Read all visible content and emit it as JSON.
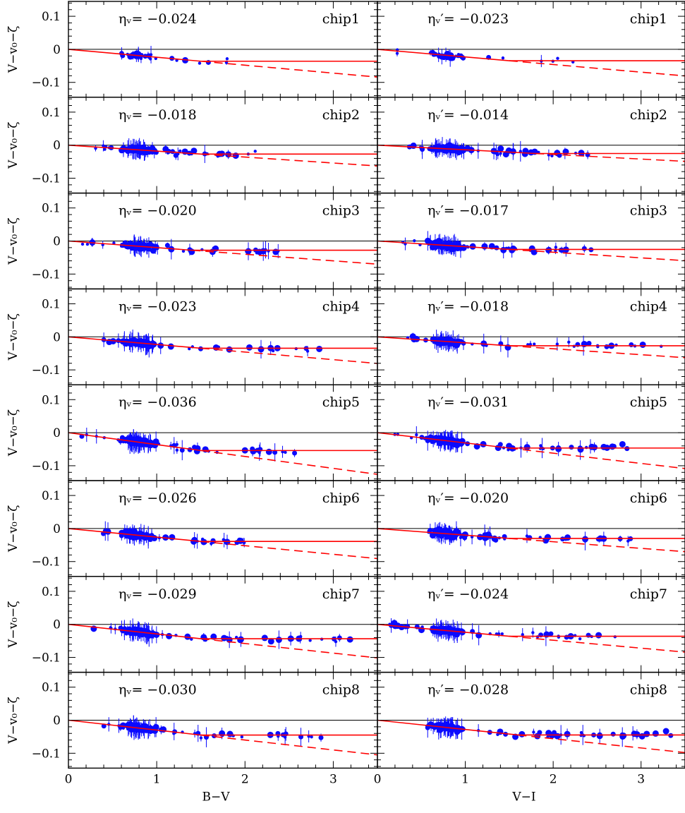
{
  "chart_data": {
    "type": "scatter",
    "layout": "8 rows x 2 columns",
    "columns": [
      {
        "xlabel": "B−V",
        "eta_symbol": "ηᵥ",
        "xlim": [
          0,
          3.5
        ],
        "xticks": [
          "0",
          "1",
          "2",
          "3"
        ]
      },
      {
        "xlabel": "V−I",
        "eta_symbol": "ηᵥ′",
        "xlim": [
          0,
          3.5
        ],
        "xticks": [
          "0",
          "1",
          "2",
          "3"
        ]
      }
    ],
    "ylabel": "V−v₀−ζ",
    "ylim": [
      -0.145,
      0.145
    ],
    "yticks": [
      "0.1",
      "0",
      "−0.1"
    ],
    "reference_line_y": 0,
    "panels": [
      {
        "chip": "chip1",
        "column": 0,
        "eta": -0.024,
        "eta_text": "−0.024",
        "break_x": 1.5,
        "x_range": [
          0.15,
          2.2
        ],
        "n": 40
      },
      {
        "chip": "chip1",
        "column": 1,
        "eta": -0.023,
        "eta_text": "−0.023",
        "break_x": 1.5,
        "x_range": [
          0.2,
          2.4
        ],
        "n": 45
      },
      {
        "chip": "chip2",
        "column": 0,
        "eta": -0.018,
        "eta_text": "−0.018",
        "break_x": 1.5,
        "x_range": [
          0.3,
          2.2
        ],
        "n": 150
      },
      {
        "chip": "chip2",
        "column": 1,
        "eta": -0.014,
        "eta_text": "−0.014",
        "break_x": 1.8,
        "x_range": [
          0.3,
          2.4
        ],
        "n": 170
      },
      {
        "chip": "chip3",
        "column": 0,
        "eta": -0.02,
        "eta_text": "−0.020",
        "break_x": 1.4,
        "x_range": [
          0.15,
          2.4
        ],
        "n": 150
      },
      {
        "chip": "chip3",
        "column": 1,
        "eta": -0.017,
        "eta_text": "−0.017",
        "break_x": 1.5,
        "x_range": [
          0.2,
          2.45
        ],
        "n": 170
      },
      {
        "chip": "chip4",
        "column": 0,
        "eta": -0.023,
        "eta_text": "−0.023",
        "break_x": 1.5,
        "x_range": [
          0.35,
          2.85
        ],
        "n": 130
      },
      {
        "chip": "chip4",
        "column": 1,
        "eta": -0.018,
        "eta_text": "−0.018",
        "break_x": 1.5,
        "x_range": [
          0.3,
          3.45
        ],
        "n": 150
      },
      {
        "chip": "chip5",
        "column": 0,
        "eta": -0.036,
        "eta_text": "−0.036",
        "break_x": 1.5,
        "x_range": [
          0.15,
          2.6
        ],
        "n": 170
      },
      {
        "chip": "chip5",
        "column": 1,
        "eta": -0.031,
        "eta_text": "−0.031",
        "break_x": 1.5,
        "x_range": [
          0.1,
          2.9
        ],
        "n": 180
      },
      {
        "chip": "chip6",
        "column": 0,
        "eta": -0.026,
        "eta_text": "−0.026",
        "break_x": 1.5,
        "x_range": [
          0.35,
          2.1
        ],
        "n": 130
      },
      {
        "chip": "chip6",
        "column": 1,
        "eta": -0.02,
        "eta_text": "−0.020",
        "break_x": 1.5,
        "x_range": [
          0.5,
          2.9
        ],
        "n": 150
      },
      {
        "chip": "chip7",
        "column": 0,
        "eta": -0.029,
        "eta_text": "−0.029",
        "break_x": 1.5,
        "x_range": [
          0.15,
          3.2
        ],
        "n": 170
      },
      {
        "chip": "chip7",
        "column": 1,
        "eta": -0.024,
        "eta_text": "−0.024",
        "break_x": 1.5,
        "x_range": [
          0.1,
          2.9
        ],
        "n": 180
      },
      {
        "chip": "chip8",
        "column": 0,
        "eta": -0.03,
        "eta_text": "−0.030",
        "break_x": 1.5,
        "x_range": [
          0.4,
          2.9
        ],
        "n": 150
      },
      {
        "chip": "chip8",
        "column": 1,
        "eta": -0.028,
        "eta_text": "−0.028",
        "break_x": 1.6,
        "x_range": [
          0.5,
          3.4
        ],
        "n": 160
      }
    ],
    "colors": {
      "points": "#0a0aff",
      "fit": "#ff0000",
      "reference": "#000000"
    }
  }
}
